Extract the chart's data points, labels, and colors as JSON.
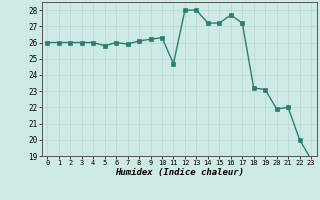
{
  "x": [
    0,
    1,
    2,
    3,
    4,
    5,
    6,
    7,
    8,
    9,
    10,
    11,
    12,
    13,
    14,
    15,
    16,
    17,
    18,
    19,
    20,
    21,
    22,
    23
  ],
  "y": [
    26.0,
    26.0,
    26.0,
    26.0,
    26.0,
    25.8,
    26.0,
    25.9,
    26.1,
    26.2,
    26.3,
    24.7,
    28.0,
    28.0,
    27.2,
    27.2,
    27.7,
    27.2,
    23.2,
    23.1,
    21.9,
    22.0,
    20.0,
    18.8
  ],
  "xlabel": "Humidex (Indice chaleur)",
  "ylim": [
    19,
    28.5
  ],
  "xlim": [
    -0.5,
    23.5
  ],
  "yticks": [
    19,
    20,
    21,
    22,
    23,
    24,
    25,
    26,
    27,
    28
  ],
  "xticks": [
    0,
    1,
    2,
    3,
    4,
    5,
    6,
    7,
    8,
    9,
    10,
    11,
    12,
    13,
    14,
    15,
    16,
    17,
    18,
    19,
    20,
    21,
    22,
    23
  ],
  "line_color": "#2d7d6e",
  "bg_color": "#ceeae6",
  "grid_color": "#b8d8d4",
  "marker_size": 2.5,
  "line_width": 1.0
}
